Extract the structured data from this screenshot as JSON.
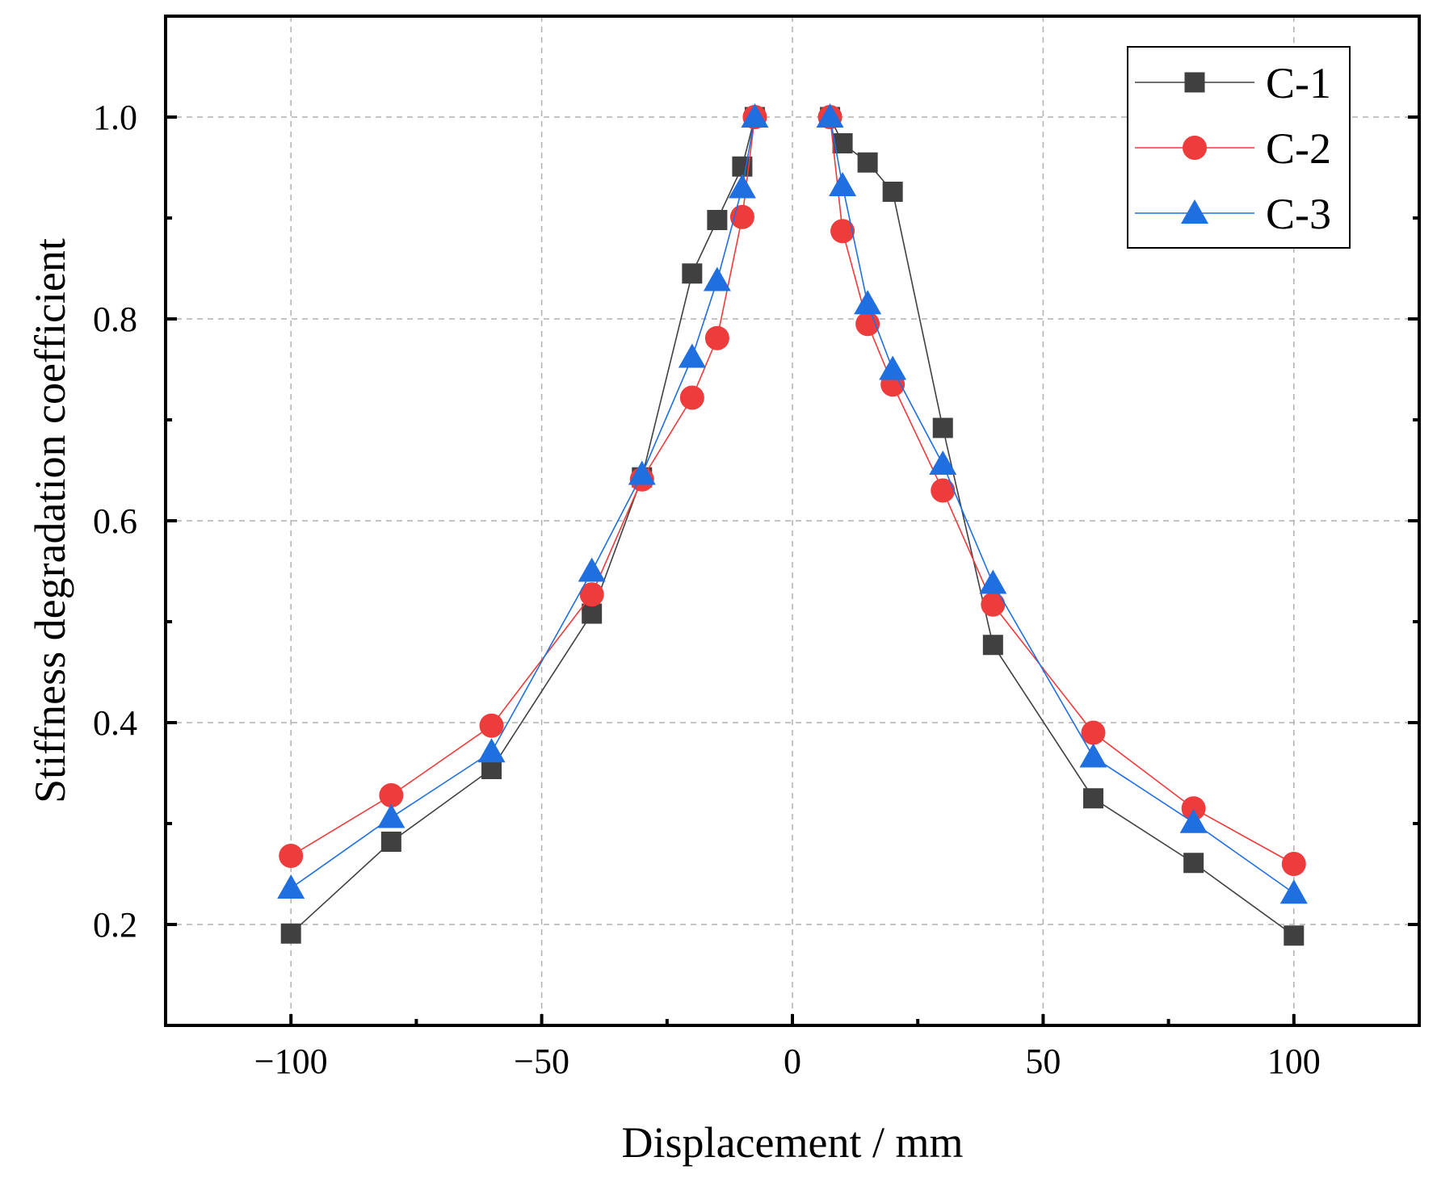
{
  "chart_data": {
    "type": "line",
    "title": "",
    "xlabel": "Displacement / mm",
    "ylabel": "Stiffness degradation coefficient",
    "xlim": [
      -125,
      125
    ],
    "ylim": [
      0.1,
      1.1
    ],
    "xticks": [
      -100,
      -50,
      0,
      50,
      100
    ],
    "xtick_labels": [
      "−100",
      "−50",
      "0",
      "50",
      "100"
    ],
    "yticks": [
      0.2,
      0.4,
      0.6,
      0.8,
      1.0
    ],
    "ytick_labels": [
      "0.2",
      "0.4",
      "0.6",
      "0.8",
      "1.0"
    ],
    "grid": true,
    "legend_position": "top-right",
    "series": [
      {
        "name": "C-1",
        "marker": "square",
        "color": "#404040",
        "segments": [
          {
            "x": [
              -100,
              -80,
              -60,
              -40,
              -30,
              -20,
              -15,
              -10,
              -7.5
            ],
            "y": [
              0.191,
              0.282,
              0.354,
              0.508,
              0.643,
              0.845,
              0.898,
              0.951,
              1.0
            ]
          },
          {
            "x": [
              7.5,
              10,
              15,
              20,
              30,
              40,
              60,
              80,
              100
            ],
            "y": [
              1.0,
              0.974,
              0.955,
              0.926,
              0.692,
              0.477,
              0.325,
              0.261,
              0.189
            ]
          }
        ]
      },
      {
        "name": "C-2",
        "marker": "circle",
        "color": "#ee3b3b",
        "segments": [
          {
            "x": [
              -100,
              -80,
              -60,
              -40,
              -30,
              -20,
              -15,
              -10,
              -7.5
            ],
            "y": [
              0.268,
              0.328,
              0.397,
              0.527,
              0.641,
              0.722,
              0.781,
              0.901,
              1.0
            ]
          },
          {
            "x": [
              7.5,
              10,
              15,
              20,
              30,
              40,
              60,
              80,
              100
            ],
            "y": [
              1.0,
              0.887,
              0.795,
              0.735,
              0.63,
              0.517,
              0.39,
              0.315,
              0.26
            ]
          }
        ]
      },
      {
        "name": "C-3",
        "marker": "triangle",
        "color": "#1f6fe0",
        "segments": [
          {
            "x": [
              -100,
              -80,
              -60,
              -40,
              -30,
              -20,
              -15,
              -10,
              -7.5
            ],
            "y": [
              0.236,
              0.306,
              0.371,
              0.55,
              0.646,
              0.762,
              0.838,
              0.93,
              1.0
            ]
          },
          {
            "x": [
              7.5,
              10,
              15,
              20,
              30,
              40,
              60,
              80,
              100
            ],
            "y": [
              1.0,
              0.932,
              0.815,
              0.75,
              0.656,
              0.538,
              0.366,
              0.301,
              0.231
            ]
          }
        ]
      }
    ]
  }
}
